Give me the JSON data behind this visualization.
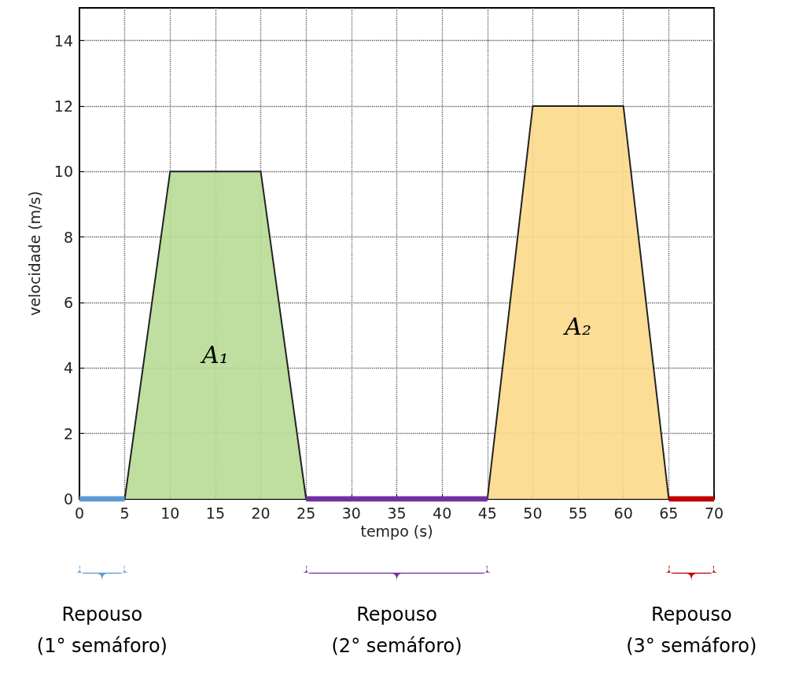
{
  "chart_data": {
    "type": "area",
    "xlabel": "tempo (s)",
    "ylabel": "velocidade (m/s)",
    "xlim": [
      0,
      70
    ],
    "xticks": [
      0,
      5,
      10,
      15,
      20,
      25,
      30,
      35,
      40,
      45,
      50,
      55,
      60,
      65,
      70
    ],
    "ylim": [
      0,
      15
    ],
    "yticks": [
      0,
      2,
      4,
      6,
      8,
      10,
      12,
      14
    ],
    "grid": true,
    "marker": "none",
    "series": [
      {
        "color": "#b7dc95",
        "x": [
          5,
          10,
          20,
          25
        ],
        "values": [
          0,
          10,
          10,
          0
        ]
      },
      {
        "color": "#fbd98a",
        "x": [
          45,
          50,
          60,
          65
        ],
        "values": [
          0,
          12,
          12,
          0
        ]
      },
      {
        "type": "line",
        "color": "#5b9bd5",
        "line_style": "solid",
        "x": [
          0,
          5
        ],
        "values": [
          0,
          0
        ]
      },
      {
        "type": "line",
        "color": "#7030a0",
        "line_style": "solid",
        "x": [
          25,
          45
        ],
        "values": [
          0,
          0
        ]
      },
      {
        "type": "line",
        "color": "#c00000",
        "line_style": "solid",
        "x": [
          65,
          70
        ],
        "values": [
          0,
          0
        ]
      }
    ],
    "annotations": [
      "A₁",
      "A₂",
      "Repouso\n(1° semáforo)",
      "Repouso\n(2° semáforo)",
      "Repouso\n(3° semáforo)"
    ]
  }
}
